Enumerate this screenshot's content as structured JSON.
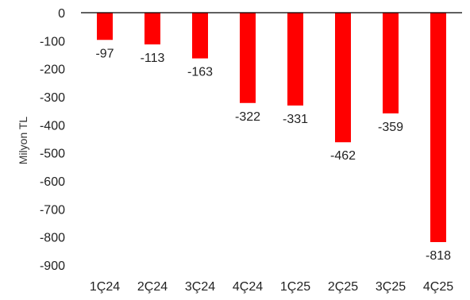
{
  "chart_data": {
    "type": "bar",
    "title": "",
    "xlabel": "",
    "ylabel": "Milyon TL",
    "categories": [
      "1Ç24",
      "2Ç24",
      "3Ç24",
      "4Ç24",
      "1Ç25",
      "2Ç25",
      "3Ç25",
      "4Ç25"
    ],
    "values": [
      -97,
      -113,
      -163,
      -322,
      -331,
      -462,
      -359,
      -818
    ],
    "data_labels": [
      "-97",
      "-113",
      "-163",
      "-322",
      "-331",
      "-462",
      "-359",
      "-818"
    ],
    "ylim": [
      -900,
      0
    ],
    "yticks": [
      0,
      -100,
      -200,
      -300,
      -400,
      -500,
      -600,
      -700,
      -800,
      -900
    ],
    "ytick_labels": [
      "0",
      "-100",
      "-200",
      "-300",
      "-400",
      "-500",
      "-600",
      "-700",
      "-800",
      "-900"
    ],
    "grid": false,
    "legend": "none",
    "bar_color": "#ff0000"
  }
}
